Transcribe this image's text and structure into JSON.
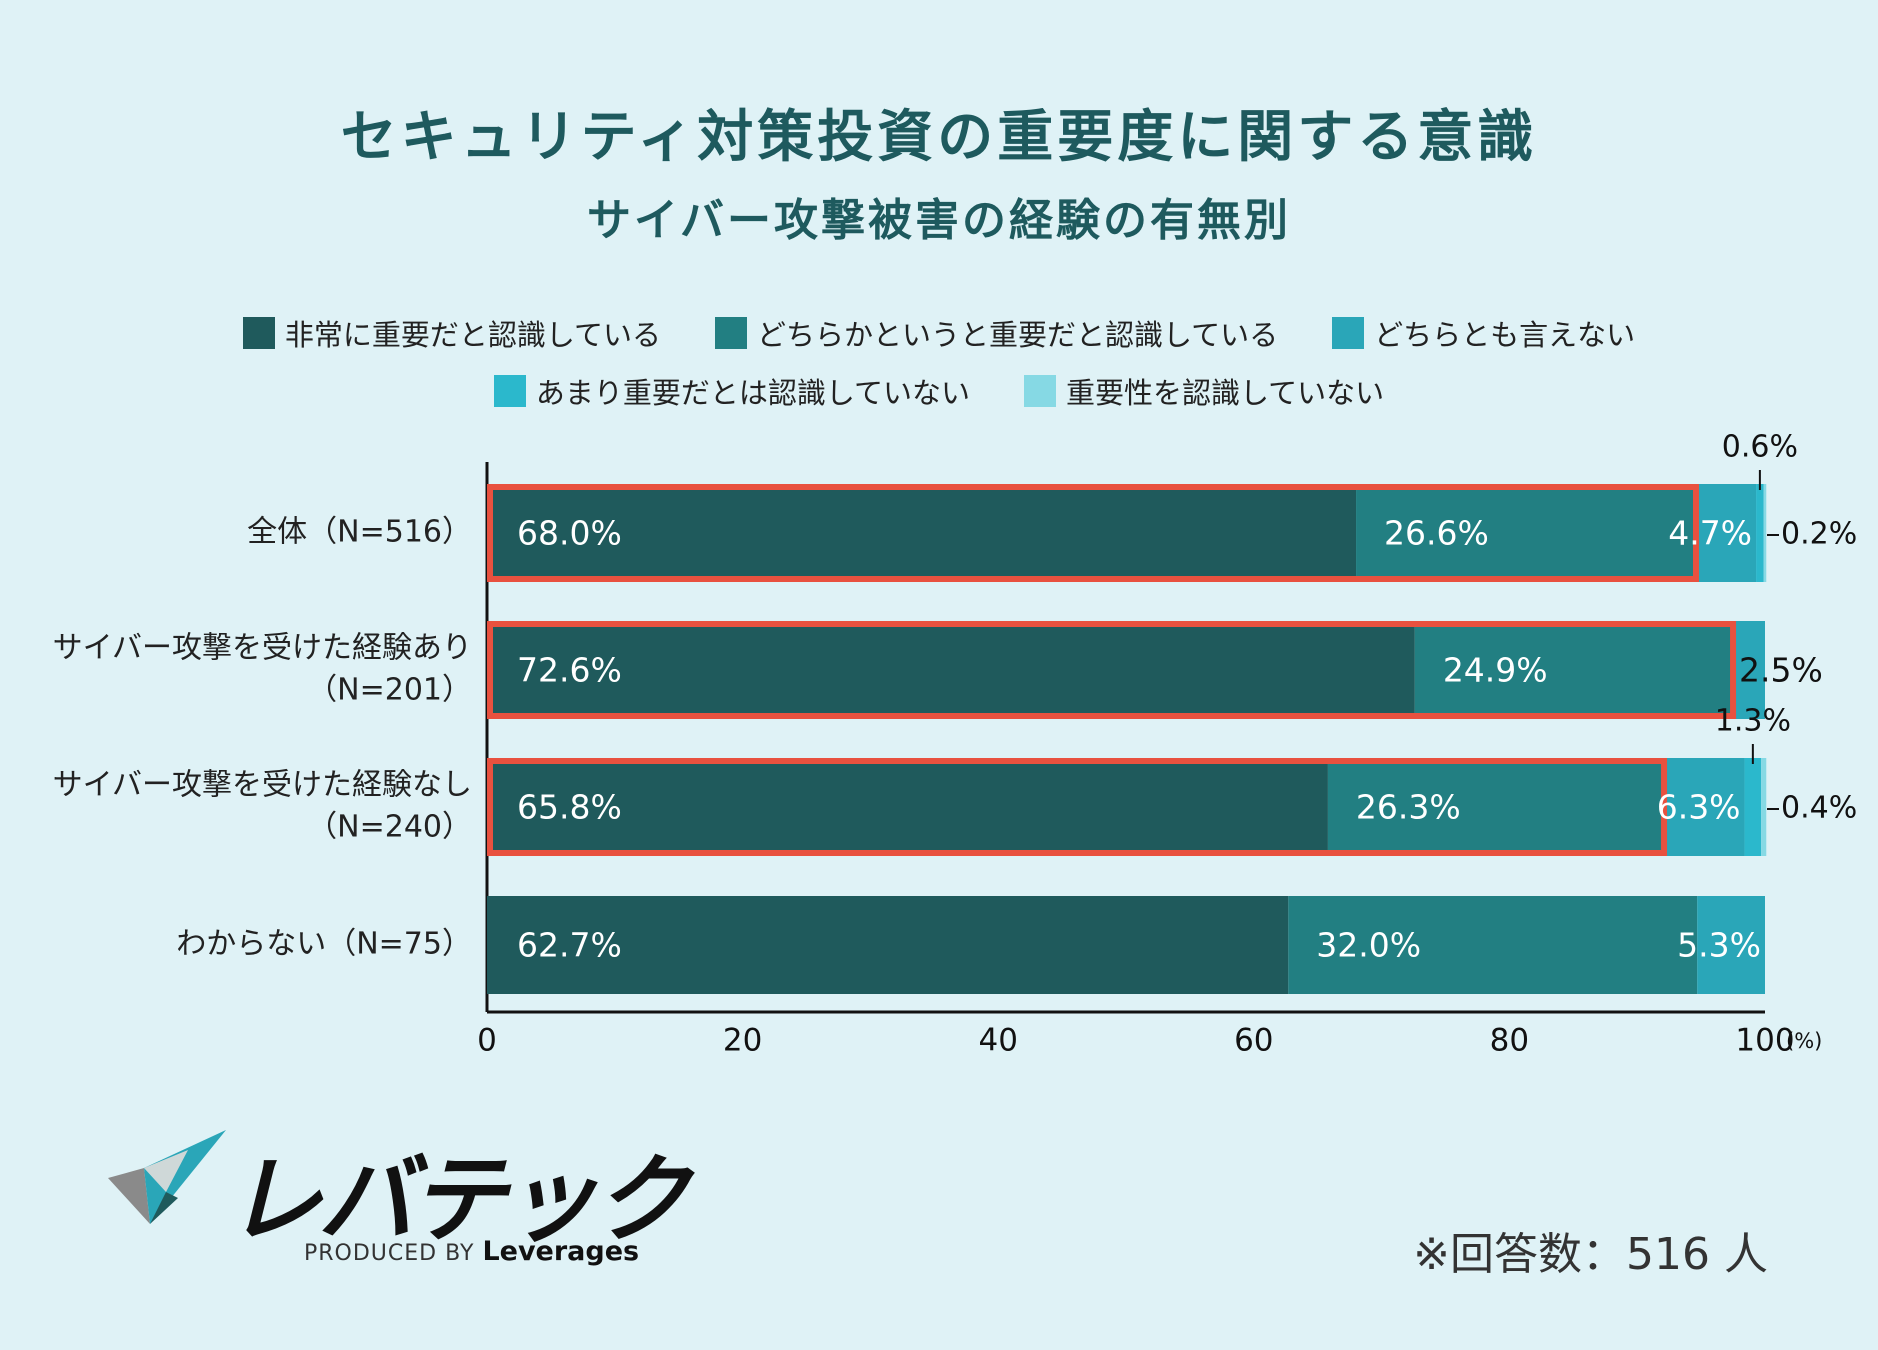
{
  "chart_data": {
    "type": "bar",
    "orientation": "horizontal",
    "stacked": true,
    "title": "セキュリティ対策投資の重要度に関する意識",
    "subtitle": "サイバー攻撃被害の経験の有無別",
    "categories": [
      "全体（N=516）",
      "サイバー攻撃を受けた経験あり（N=201）",
      "サイバー攻撃を受けた経験なし（N=240）",
      "わからない（N=75）"
    ],
    "category_lines": [
      [
        "全体（N=516）"
      ],
      [
        "サイバー攻撃を受けた経験あり",
        "（N=201）"
      ],
      [
        "サイバー攻撃を受けた経験なし",
        "（N=240）"
      ],
      [
        "わからない（N=75）"
      ]
    ],
    "series": [
      {
        "name": "非常に重要だと認識している",
        "color": "#1f5a5c",
        "values": [
          68.0,
          72.6,
          65.8,
          62.7
        ]
      },
      {
        "name": "どちらかというと重要だと認識している",
        "color": "#227f82",
        "values": [
          26.6,
          24.9,
          26.3,
          32.0
        ]
      },
      {
        "name": "どちらとも言えない",
        "color": "#2aa6b8",
        "values": [
          4.7,
          2.5,
          6.3,
          5.3
        ]
      },
      {
        "name": "あまり重要だとは認識していない",
        "color": "#2bb8cc",
        "values": [
          0.6,
          0,
          1.3,
          0
        ]
      },
      {
        "name": "重要性を認識していない",
        "color": "#86d9e4",
        "values": [
          0.2,
          0,
          0.4,
          0
        ]
      }
    ],
    "data_labels": [
      [
        "68.0%",
        "26.6%",
        "4.7%",
        "0.6%",
        "0.2%"
      ],
      [
        "72.6%",
        "24.9%",
        "2.5%",
        "",
        ""
      ],
      [
        "65.8%",
        "26.3%",
        "6.3%",
        "1.3%",
        "0.4%"
      ],
      [
        "62.7%",
        "32.0%",
        "5.3%",
        "",
        ""
      ]
    ],
    "xlim": [
      0,
      100
    ],
    "xticks": [
      0,
      20,
      40,
      60,
      80,
      100
    ],
    "xunit": "(%)",
    "highlighted_rows": [
      0,
      1,
      2
    ],
    "highlight_color": "#e8513f"
  },
  "footnote": "※回答数：516 人",
  "logo": {
    "name": "レバテック",
    "produced_by": "PRODUCED BY",
    "company": "Leverages"
  }
}
